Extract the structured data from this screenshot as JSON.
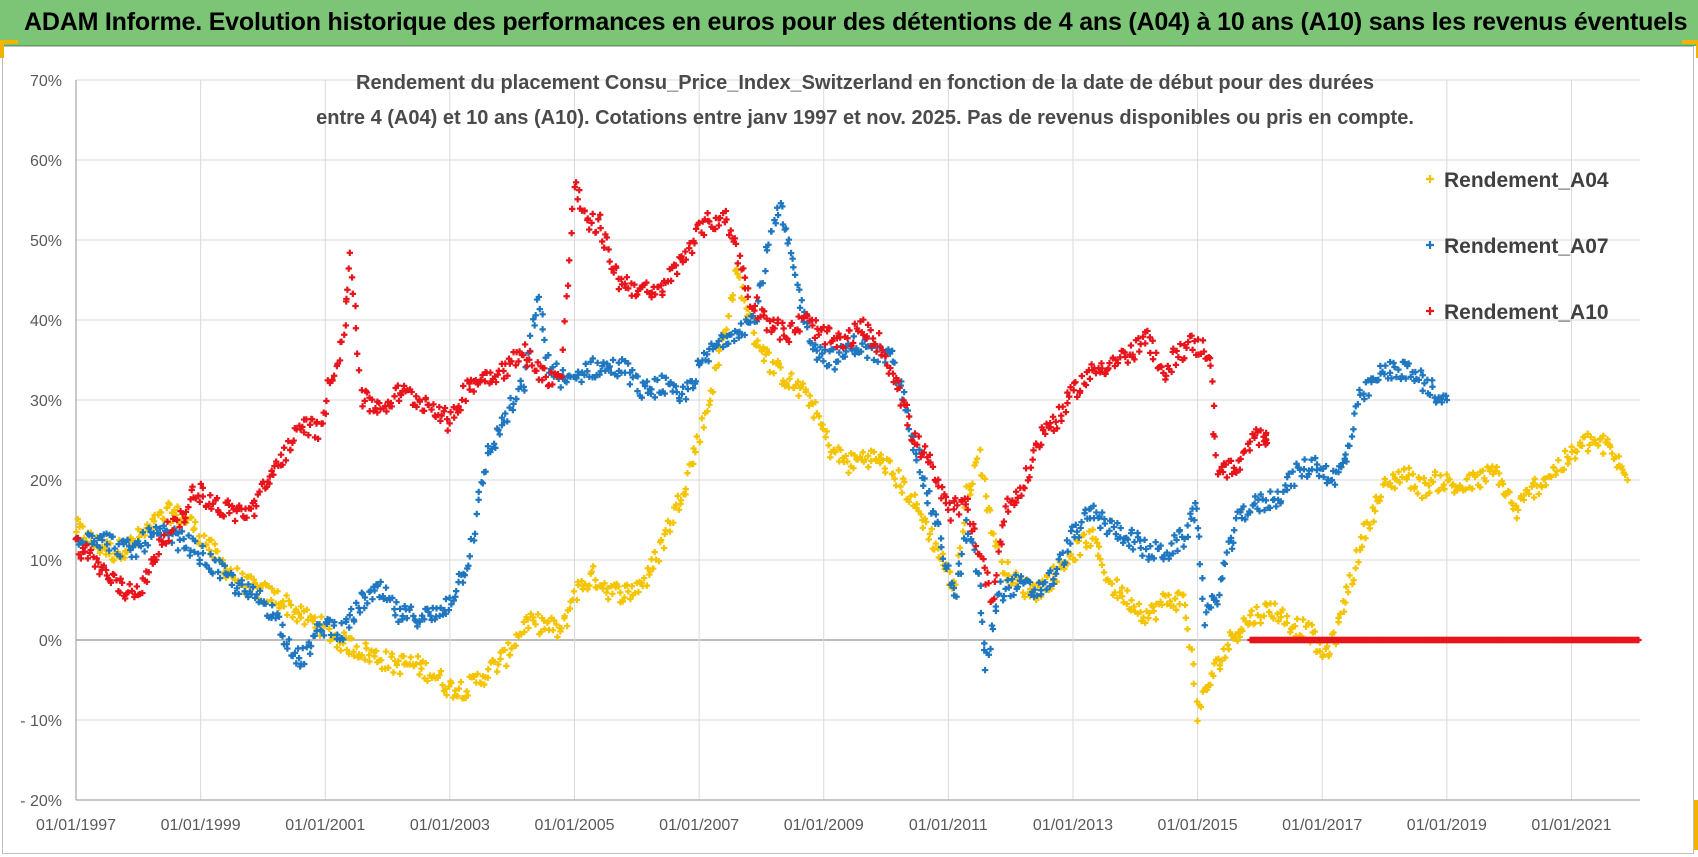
{
  "header": {
    "title": "ADAM Informe. Evolution historique des performances en euros pour des détentions de 4 ans (A04) à 10 ans (A10) sans les revenus éventuels"
  },
  "chart_data": {
    "type": "scatter",
    "title_line1": "Rendement du placement Consu_Price_Index_Switzerland en fonction de la date de début pour des durées",
    "title_line2": "entre 4 (A04) et 10 ans (A10).  Cotations entre janv 1997 et nov. 2025. Pas de revenus disponibles ou pris en compte.",
    "xlabel": "",
    "ylabel": "",
    "xlim": [
      1997.0,
      2022.1
    ],
    "ylim": [
      -20,
      70
    ],
    "y_ticks": [
      -20,
      -10,
      0,
      10,
      20,
      30,
      40,
      50,
      60,
      70
    ],
    "y_tick_labels": [
      "- 20%",
      "- 10%",
      "0%",
      "10%",
      "20%",
      "30%",
      "40%",
      "50%",
      "60%",
      "70%"
    ],
    "x_ticks": [
      1997,
      1999,
      2001,
      2003,
      2005,
      2007,
      2009,
      2011,
      2013,
      2015,
      2017,
      2019,
      2021
    ],
    "x_tick_labels": [
      "01/01/1997",
      "01/01/1999",
      "01/01/2001",
      "01/01/2003",
      "01/01/2005",
      "01/01/2007",
      "01/01/2009",
      "01/01/2011",
      "01/01/2013",
      "01/01/2015",
      "01/01/2017",
      "01/01/2019",
      "01/01/2021"
    ],
    "legend_position": "top-right",
    "series": [
      {
        "name": "Rendement_A04",
        "color": "#f5c400",
        "points": [
          [
            1997.0,
            14
          ],
          [
            1997.3,
            12
          ],
          [
            1997.6,
            11
          ],
          [
            1997.9,
            12
          ],
          [
            1998.2,
            14
          ],
          [
            1998.5,
            16
          ],
          [
            1998.8,
            15
          ],
          [
            1999.1,
            12
          ],
          [
            1999.4,
            9
          ],
          [
            1999.7,
            7
          ],
          [
            2000.0,
            6
          ],
          [
            2000.3,
            5
          ],
          [
            2000.6,
            3
          ],
          [
            2000.9,
            2
          ],
          [
            2001.2,
            0
          ],
          [
            2001.5,
            -1
          ],
          [
            2001.8,
            -2
          ],
          [
            2002.1,
            -3
          ],
          [
            2002.4,
            -3
          ],
          [
            2002.7,
            -4
          ],
          [
            2003.0,
            -6
          ],
          [
            2003.3,
            -6
          ],
          [
            2003.6,
            -4
          ],
          [
            2003.9,
            -2
          ],
          [
            2004.2,
            2
          ],
          [
            2004.5,
            2
          ],
          [
            2004.8,
            1
          ],
          [
            2005.0,
            6
          ],
          [
            2005.3,
            8
          ],
          [
            2005.6,
            6
          ],
          [
            2005.9,
            6
          ],
          [
            2006.2,
            8
          ],
          [
            2006.5,
            14
          ],
          [
            2006.8,
            20
          ],
          [
            2007.1,
            28
          ],
          [
            2007.4,
            38
          ],
          [
            2007.6,
            46
          ],
          [
            2007.9,
            38
          ],
          [
            2008.2,
            34
          ],
          [
            2008.5,
            32
          ],
          [
            2008.8,
            30
          ],
          [
            2009.1,
            24
          ],
          [
            2009.4,
            22
          ],
          [
            2009.7,
            23
          ],
          [
            2010.0,
            22
          ],
          [
            2010.3,
            19
          ],
          [
            2010.6,
            15
          ],
          [
            2010.9,
            10
          ],
          [
            2011.1,
            6
          ],
          [
            2011.3,
            18
          ],
          [
            2011.5,
            23
          ],
          [
            2011.7,
            14
          ],
          [
            2011.9,
            9
          ],
          [
            2012.1,
            7
          ],
          [
            2012.4,
            6
          ],
          [
            2012.7,
            8
          ],
          [
            2013.0,
            11
          ],
          [
            2013.3,
            13
          ],
          [
            2013.6,
            7
          ],
          [
            2013.9,
            5
          ],
          [
            2014.2,
            3
          ],
          [
            2014.5,
            5
          ],
          [
            2014.8,
            5
          ],
          [
            2015.0,
            -9
          ],
          [
            2015.2,
            -5
          ],
          [
            2015.4,
            -2
          ],
          [
            2015.6,
            1
          ],
          [
            2015.9,
            3
          ],
          [
            2016.2,
            4
          ],
          [
            2016.5,
            2
          ],
          [
            2016.8,
            1
          ],
          [
            2017.0,
            -2
          ],
          [
            2017.2,
            0
          ],
          [
            2017.4,
            6
          ],
          [
            2017.7,
            14
          ],
          [
            2018.0,
            19
          ],
          [
            2018.3,
            21
          ],
          [
            2018.6,
            19
          ],
          [
            2018.9,
            20
          ],
          [
            2019.2,
            19
          ],
          [
            2019.5,
            20
          ],
          [
            2019.8,
            21
          ],
          [
            2020.1,
            16
          ],
          [
            2020.4,
            19
          ],
          [
            2020.7,
            21
          ],
          [
            2021.0,
            23
          ],
          [
            2021.3,
            25
          ],
          [
            2021.6,
            24
          ],
          [
            2021.9,
            20
          ]
        ]
      },
      {
        "name": "Rendement_A07",
        "color": "#1f77c0",
        "points": [
          [
            1997.0,
            13
          ],
          [
            1997.3,
            13
          ],
          [
            1997.6,
            12
          ],
          [
            1997.9,
            11
          ],
          [
            1998.2,
            13
          ],
          [
            1998.5,
            13
          ],
          [
            1998.8,
            12
          ],
          [
            1999.1,
            10
          ],
          [
            1999.4,
            8
          ],
          [
            1999.7,
            6
          ],
          [
            2000.0,
            5
          ],
          [
            2000.2,
            3
          ],
          [
            2000.4,
            0
          ],
          [
            2000.6,
            -3
          ],
          [
            2000.8,
            0
          ],
          [
            2001.0,
            2
          ],
          [
            2001.3,
            1
          ],
          [
            2001.6,
            5
          ],
          [
            2001.9,
            6
          ],
          [
            2002.2,
            3
          ],
          [
            2002.5,
            3
          ],
          [
            2002.8,
            3
          ],
          [
            2003.0,
            5
          ],
          [
            2003.3,
            10
          ],
          [
            2003.6,
            23
          ],
          [
            2003.9,
            28
          ],
          [
            2004.2,
            32
          ],
          [
            2004.4,
            43
          ],
          [
            2004.6,
            34
          ],
          [
            2004.9,
            32
          ],
          [
            2005.2,
            34
          ],
          [
            2005.5,
            34
          ],
          [
            2005.8,
            34
          ],
          [
            2006.1,
            31
          ],
          [
            2006.4,
            32
          ],
          [
            2006.7,
            30
          ],
          [
            2007.0,
            34
          ],
          [
            2007.3,
            37
          ],
          [
            2007.6,
            39
          ],
          [
            2007.9,
            40
          ],
          [
            2008.1,
            49
          ],
          [
            2008.3,
            54
          ],
          [
            2008.5,
            47
          ],
          [
            2008.7,
            40
          ],
          [
            2008.9,
            36
          ],
          [
            2009.2,
            35
          ],
          [
            2009.5,
            37
          ],
          [
            2009.8,
            36
          ],
          [
            2010.1,
            35
          ],
          [
            2010.3,
            30
          ],
          [
            2010.6,
            20
          ],
          [
            2010.9,
            12
          ],
          [
            2011.1,
            5
          ],
          [
            2011.3,
            14
          ],
          [
            2011.5,
            8
          ],
          [
            2011.6,
            -4
          ],
          [
            2011.8,
            6
          ],
          [
            2012.1,
            7
          ],
          [
            2012.4,
            6
          ],
          [
            2012.7,
            8
          ],
          [
            2013.0,
            13
          ],
          [
            2013.3,
            16
          ],
          [
            2013.6,
            14
          ],
          [
            2013.9,
            13
          ],
          [
            2014.2,
            11
          ],
          [
            2014.5,
            11
          ],
          [
            2014.8,
            13
          ],
          [
            2015.0,
            17
          ],
          [
            2015.1,
            3
          ],
          [
            2015.3,
            5
          ],
          [
            2015.5,
            11
          ],
          [
            2015.7,
            16
          ],
          [
            2016.0,
            17
          ],
          [
            2016.3,
            18
          ],
          [
            2016.6,
            21
          ],
          [
            2016.9,
            22
          ],
          [
            2017.2,
            20
          ],
          [
            2017.4,
            23
          ],
          [
            2017.6,
            30
          ],
          [
            2017.9,
            33
          ],
          [
            2018.2,
            34
          ],
          [
            2018.5,
            33
          ],
          [
            2018.8,
            31
          ],
          [
            2019.0,
            30
          ]
        ]
      },
      {
        "name": "Rendement_A10",
        "color": "#e8141b",
        "points": [
          [
            1997.0,
            12
          ],
          [
            1997.3,
            10
          ],
          [
            1997.5,
            8
          ],
          [
            1997.8,
            6
          ],
          [
            1998.1,
            7
          ],
          [
            1998.4,
            13
          ],
          [
            1998.7,
            15
          ],
          [
            1998.9,
            19
          ],
          [
            1999.2,
            17
          ],
          [
            1999.5,
            16
          ],
          [
            1999.8,
            16
          ],
          [
            2000.1,
            20
          ],
          [
            2000.4,
            24
          ],
          [
            2000.7,
            27
          ],
          [
            2000.9,
            26
          ],
          [
            2001.1,
            33
          ],
          [
            2001.3,
            38
          ],
          [
            2001.4,
            48
          ],
          [
            2001.6,
            30
          ],
          [
            2001.9,
            29
          ],
          [
            2002.2,
            31
          ],
          [
            2002.5,
            30
          ],
          [
            2002.8,
            29
          ],
          [
            2003.0,
            27
          ],
          [
            2003.3,
            32
          ],
          [
            2003.6,
            33
          ],
          [
            2003.9,
            34
          ],
          [
            2004.2,
            36
          ],
          [
            2004.5,
            33
          ],
          [
            2004.8,
            33
          ],
          [
            2005.0,
            57
          ],
          [
            2005.2,
            52
          ],
          [
            2005.4,
            52
          ],
          [
            2005.7,
            45
          ],
          [
            2006.0,
            44
          ],
          [
            2006.3,
            43
          ],
          [
            2006.6,
            46
          ],
          [
            2006.9,
            50
          ],
          [
            2007.1,
            52
          ],
          [
            2007.4,
            53
          ],
          [
            2007.6,
            49
          ],
          [
            2007.8,
            43
          ],
          [
            2008.1,
            40
          ],
          [
            2008.4,
            38
          ],
          [
            2008.7,
            40
          ],
          [
            2009.0,
            38
          ],
          [
            2009.3,
            37
          ],
          [
            2009.6,
            39
          ],
          [
            2009.9,
            37
          ],
          [
            2010.2,
            32
          ],
          [
            2010.4,
            26
          ],
          [
            2010.7,
            22
          ],
          [
            2011.0,
            16
          ],
          [
            2011.3,
            17
          ],
          [
            2011.5,
            11
          ],
          [
            2011.7,
            5
          ],
          [
            2011.9,
            16
          ],
          [
            2012.2,
            19
          ],
          [
            2012.5,
            26
          ],
          [
            2012.8,
            28
          ],
          [
            2013.1,
            32
          ],
          [
            2013.4,
            34
          ],
          [
            2013.7,
            35
          ],
          [
            2014.0,
            36
          ],
          [
            2014.2,
            38
          ],
          [
            2014.4,
            33
          ],
          [
            2014.7,
            36
          ],
          [
            2014.9,
            37
          ],
          [
            2015.2,
            36
          ],
          [
            2015.3,
            22
          ],
          [
            2015.6,
            21
          ],
          [
            2015.9,
            25
          ],
          [
            2016.1,
            26
          ],
          [
            2016.1,
            25
          ]
        ],
        "zero_run": [
          2015.85,
          2022.1
        ]
      }
    ]
  }
}
